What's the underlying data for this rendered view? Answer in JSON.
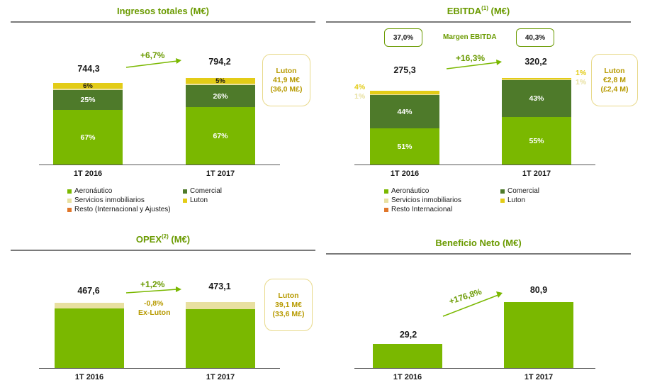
{
  "colors": {
    "aeronautico": "#7ab800",
    "comercial": "#4e7a2a",
    "inmobiliarios": "#e8e0a0",
    "luton": "#e3cc17",
    "resto": "#e0762a",
    "accent": "#6a9a00",
    "luton_text": "#b79a00"
  },
  "chart_data": [
    {
      "type": "bar",
      "title": "Ingresos totales (M€)",
      "categories": [
        "1T 2016",
        "1T 2017"
      ],
      "totals": [
        "744,3",
        "794,2"
      ],
      "growth": "+6,7%",
      "series": [
        {
          "name": "Aeronáutico",
          "values": [
            67,
            67
          ],
          "labels": [
            "67%",
            "67%"
          ]
        },
        {
          "name": "Comercial",
          "values": [
            25,
            26
          ],
          "labels": [
            "25%",
            "26%"
          ]
        },
        {
          "name": "Servicios inmobiliarios",
          "values": [
            2,
            2
          ],
          "labels": [
            "",
            ""
          ]
        },
        {
          "name": "Luton",
          "values": [
            6,
            5
          ],
          "labels": [
            "6%",
            "5%"
          ]
        }
      ],
      "callout": {
        "line1": "Luton",
        "line2": "41,9 M€",
        "line3": "(36,0 M£)"
      },
      "legend": [
        "Aeronáutico",
        "Comercial",
        "Servicios inmobiliarios",
        "Luton",
        "Resto (Internacional y Ajustes)"
      ]
    },
    {
      "type": "bar",
      "title": "EBITDA",
      "title_sup": "(1)",
      "title_suffix": " (M€)",
      "categories": [
        "1T 2016",
        "1T 2017"
      ],
      "totals": [
        "275,3",
        "320,2"
      ],
      "growth": "+16,3%",
      "margin_label": "Margen EBITDA",
      "margins": [
        "37,0%",
        "40,3%"
      ],
      "series": [
        {
          "name": "Aeronáutico",
          "values": [
            51,
            55
          ],
          "labels": [
            "51%",
            "55%"
          ]
        },
        {
          "name": "Comercial",
          "values": [
            44,
            43
          ],
          "labels": [
            "44%",
            "43%"
          ]
        },
        {
          "name": "Servicios inmobiliarios",
          "values": [
            1,
            1
          ],
          "labels": [
            "1%",
            "1%"
          ]
        },
        {
          "name": "Luton",
          "values": [
            4,
            1
          ],
          "labels": [
            "4%",
            "1%"
          ]
        }
      ],
      "callout": {
        "line1": "Luton",
        "line2": "€2,8 M",
        "line3": "(£2,4 M)"
      },
      "legend": [
        "Aeronáutico",
        "Comercial",
        "Servicios inmobiliarios",
        "Luton",
        "Resto Internacional"
      ]
    },
    {
      "type": "bar",
      "title": "OPEX",
      "title_sup": "(2)",
      "title_suffix": " (M€)",
      "categories": [
        "1T 2016",
        "1T 2017"
      ],
      "totals": [
        "467,6",
        "473,1"
      ],
      "growth": "+1,2%",
      "growth_ex1": "-0,8%",
      "growth_ex2": "Ex-Luton",
      "callout": {
        "line1": "Luton",
        "line2": "39,1 M€",
        "line3": "(33,6 M£)"
      }
    },
    {
      "type": "bar",
      "title": "Beneficio Neto (M€)",
      "categories": [
        "1T 2016",
        "1T 2017"
      ],
      "values": [
        29.2,
        80.9
      ],
      "totals": [
        "29,2",
        "80,9"
      ],
      "growth": "+176,8%",
      "ylim": [
        0,
        100
      ]
    }
  ]
}
